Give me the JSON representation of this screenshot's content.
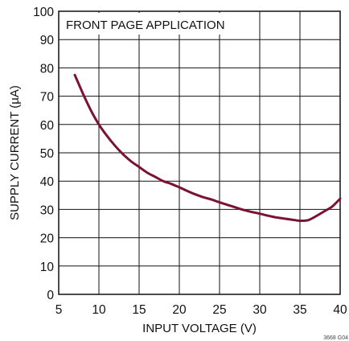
{
  "chart_data": {
    "type": "line",
    "annotation": "FRONT PAGE APPLICATION",
    "xlabel": "INPUT VOLTAGE (V)",
    "ylabel": "SUPPLY CURRENT (µA)",
    "xlim": [
      5,
      40
    ],
    "ylim": [
      0,
      100
    ],
    "xticks": [
      5,
      10,
      15,
      20,
      25,
      30,
      35,
      40
    ],
    "yticks": [
      0,
      10,
      20,
      30,
      40,
      50,
      60,
      70,
      80,
      90,
      100
    ],
    "grid": true,
    "figure_id": "3668 G04",
    "series": [
      {
        "color": "#7a1234",
        "x": [
          7,
          8,
          9,
          10,
          11,
          12,
          13,
          14,
          15,
          16,
          17,
          18,
          19,
          20,
          21,
          22,
          23,
          24,
          25,
          26,
          27,
          28,
          29,
          30,
          31,
          32,
          33,
          34,
          35,
          36,
          37,
          38,
          39,
          40
        ],
        "y": [
          77.5,
          71,
          65,
          60,
          56,
          52.5,
          49.5,
          47,
          45,
          43,
          41.5,
          40,
          39,
          37.8,
          36.5,
          35.3,
          34.3,
          33.5,
          32.5,
          31.6,
          30.7,
          29.8,
          29.1,
          28.5,
          27.8,
          27.2,
          26.8,
          26.4,
          26.0,
          26.2,
          27.6,
          29.3,
          31.0,
          33.8
        ]
      }
    ]
  }
}
